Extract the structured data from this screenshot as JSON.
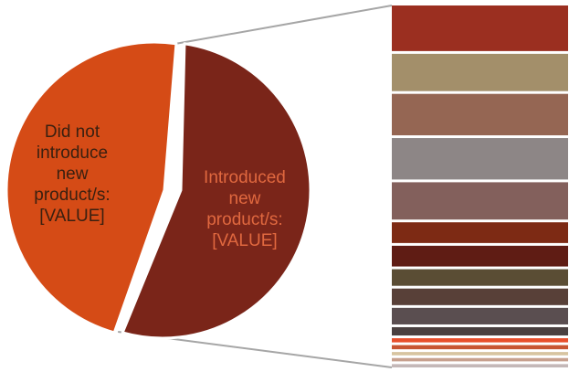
{
  "chart_data": {
    "type": "pie",
    "subtype": "bar-of-pie",
    "title": "",
    "slices": [
      {
        "name": "Introduced new product/s",
        "label_lines": [
          "Introduced",
          "new",
          "product/s:",
          "[VALUE]"
        ],
        "value": 52,
        "color": "#7a2519",
        "label_color": "#e0683f"
      },
      {
        "name": "Did not introduce new product/s",
        "label_lines": [
          "Did not",
          "introduce",
          "new",
          "product/s:",
          "[VALUE]"
        ],
        "value": 48,
        "color": "#d54b16",
        "label_color": "#3a2010"
      }
    ],
    "breakdown_values": [
      11,
      9,
      10,
      10,
      9,
      5,
      5,
      4,
      4,
      4,
      2,
      1,
      1,
      0.8,
      0.8,
      0.8
    ],
    "breakdown_colors": [
      "#9b2f20",
      "#a38f6a",
      "#956653",
      "#8d8686",
      "#83605c",
      "#7d2a14",
      "#5f1c14",
      "#5a4d34",
      "#584038",
      "#5a4e50",
      "#4a4040",
      "#e84f2c",
      "#c85533",
      "#d7c4a0",
      "#c7a08e",
      "#c4b8b8"
    ],
    "connector_color": "#a6a6a6",
    "legend": "none"
  }
}
